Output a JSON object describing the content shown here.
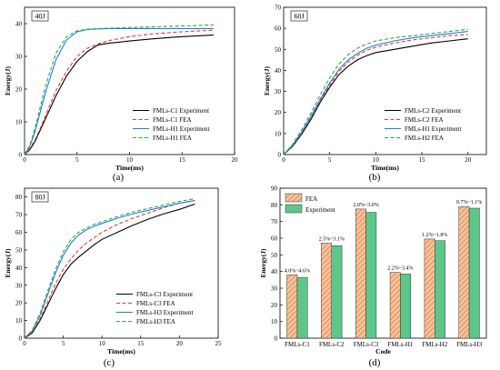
{
  "chart_data": [
    {
      "type": "line",
      "panel_label": "40J",
      "caption": "(a)",
      "xlabel": "Time(ms)",
      "ylabel": "Energy(J)",
      "xlim": [
        0,
        20
      ],
      "ylim": [
        0,
        45
      ],
      "xticks": [
        0,
        5,
        10,
        15,
        20
      ],
      "yticks": [
        0,
        10,
        20,
        30,
        40
      ],
      "legend_position": "bottom-right",
      "series": [
        {
          "name": "FMLs-C1 Experiment",
          "color": "#000000",
          "dash": "solid",
          "x": [
            0,
            0.5,
            1,
            1.5,
            2,
            3,
            4,
            5,
            6,
            7,
            8,
            10,
            12,
            14,
            16,
            18
          ],
          "y": [
            0,
            1.5,
            4,
            7.5,
            11,
            18,
            24,
            28.5,
            31.5,
            33.5,
            34,
            34.7,
            35.3,
            35.8,
            36.2,
            36.5
          ]
        },
        {
          "name": "FMLs-C1 FEA",
          "color": "#e8392f",
          "dash": "dashed",
          "x": [
            0,
            0.5,
            1,
            1.5,
            2,
            3,
            4,
            5,
            6,
            7,
            8,
            10,
            12,
            14,
            16,
            18
          ],
          "y": [
            0,
            1.8,
            4.5,
            8,
            12,
            19.5,
            25.5,
            30,
            32.5,
            33.8,
            34.8,
            36,
            36.8,
            37.3,
            37.7,
            38
          ]
        },
        {
          "name": "FMLs-H1 Experiment",
          "color": "#1f7fd3",
          "dash": "solid",
          "x": [
            0,
            0.5,
            1,
            1.5,
            2,
            3,
            4,
            5,
            6,
            7,
            8,
            10,
            12,
            14,
            16,
            18
          ],
          "y": [
            0,
            2.5,
            7,
            13,
            19,
            29,
            35,
            37.5,
            38.2,
            38.4,
            38.5,
            38.5,
            38.5,
            38.5,
            38.5,
            38.5
          ]
        },
        {
          "name": "FMLs-H1 FEA",
          "color": "#2aa84a",
          "dash": "dashed",
          "x": [
            0,
            0.5,
            1,
            1.5,
            2,
            3,
            4,
            5,
            6,
            7,
            8,
            10,
            12,
            14,
            16,
            18
          ],
          "y": [
            0,
            2.8,
            8,
            14.5,
            21,
            31,
            36,
            37.8,
            38.3,
            38.5,
            38.6,
            38.8,
            39,
            39.2,
            39.4,
            39.6
          ]
        }
      ]
    },
    {
      "type": "line",
      "panel_label": "60J",
      "caption": "(b)",
      "xlabel": "Time(ms)",
      "ylabel": "Energy(J)",
      "xlim": [
        0,
        22
      ],
      "ylim": [
        0,
        70
      ],
      "xticks": [
        0,
        5,
        10,
        15,
        20
      ],
      "yticks": [
        0,
        10,
        20,
        30,
        40,
        50,
        60,
        70
      ],
      "legend_position": "bottom-right",
      "series": [
        {
          "name": "FMLs-C2 Experiment",
          "color": "#000000",
          "dash": "solid",
          "x": [
            0,
            1,
            2,
            3,
            4,
            5,
            6,
            7,
            8,
            9,
            10,
            12,
            14,
            16,
            18,
            20
          ],
          "y": [
            0,
            4,
            10,
            17,
            25,
            32,
            38,
            42,
            45,
            47,
            48.5,
            50,
            51.5,
            53,
            54,
            55
          ]
        },
        {
          "name": "FMLs-C2 FEA",
          "color": "#e8392f",
          "dash": "dashed",
          "x": [
            0,
            1,
            2,
            3,
            4,
            5,
            6,
            7,
            8,
            9,
            10,
            12,
            14,
            16,
            18,
            20
          ],
          "y": [
            0,
            4.2,
            10.5,
            18,
            26,
            33,
            39.5,
            44,
            47,
            49.5,
            51,
            53,
            54.5,
            55.5,
            56.5,
            57
          ]
        },
        {
          "name": "FMLs-H1 Experiment",
          "color": "#1f7fd3",
          "dash": "solid",
          "x": [
            0,
            1,
            2,
            3,
            4,
            5,
            6,
            7,
            8,
            9,
            10,
            12,
            14,
            16,
            18,
            20
          ],
          "y": [
            0,
            4.5,
            11,
            18.5,
            26.5,
            34,
            40.5,
            45,
            48,
            50.5,
            52,
            54,
            55.5,
            56.5,
            57.5,
            58.5
          ]
        },
        {
          "name": "FMLs-H2 FEA",
          "color": "#2aa84a",
          "dash": "dashed",
          "x": [
            0,
            1,
            2,
            3,
            4,
            5,
            6,
            7,
            8,
            9,
            10,
            12,
            14,
            16,
            18,
            20
          ],
          "y": [
            0,
            5,
            12,
            20,
            28.5,
            36.5,
            43,
            47.5,
            50.5,
            52.5,
            54,
            55.5,
            56.5,
            57.5,
            58.5,
            59.5
          ]
        }
      ]
    },
    {
      "type": "line",
      "panel_label": "80J",
      "caption": "(c)",
      "xlabel": "Time(ms)",
      "ylabel": "Energy(J)",
      "xlim": [
        0,
        25
      ],
      "ylim": [
        0,
        85
      ],
      "xticks": [
        0,
        5,
        10,
        15,
        20,
        25
      ],
      "yticks": [
        0,
        10,
        20,
        30,
        40,
        50,
        60,
        70,
        80
      ],
      "legend_position": "bottom-right",
      "series": [
        {
          "name": "FMLs-C3 Experiment",
          "color": "#000000",
          "dash": "solid",
          "x": [
            0,
            1,
            2,
            3,
            4,
            5,
            6,
            7,
            8,
            9,
            10,
            12,
            14,
            16,
            18,
            20,
            22
          ],
          "y": [
            0,
            3,
            10,
            19,
            28,
            36,
            42,
            46,
            49.5,
            53,
            56,
            60,
            64,
            67.5,
            70.5,
            73,
            76
          ]
        },
        {
          "name": "FMLs-C3 FEA",
          "color": "#e8392f",
          "dash": "dashed",
          "x": [
            0,
            1,
            2,
            3,
            4,
            5,
            6,
            7,
            8,
            9,
            10,
            12,
            14,
            16,
            18,
            20,
            22
          ],
          "y": [
            0,
            3.5,
            11,
            21,
            31,
            39,
            45,
            50,
            54,
            57,
            60,
            64.5,
            68,
            71,
            74,
            76.5,
            78
          ]
        },
        {
          "name": "FMLs-H3 Experiment",
          "color": "#1f7fd3",
          "dash": "solid",
          "x": [
            0,
            1,
            2,
            3,
            4,
            5,
            6,
            7,
            8,
            9,
            10,
            12,
            14,
            16,
            18,
            20,
            22
          ],
          "y": [
            0,
            4,
            13,
            25,
            37,
            47,
            54,
            58.5,
            61.5,
            63.5,
            65,
            68,
            70.5,
            72.5,
            74.5,
            76.5,
            78
          ]
        },
        {
          "name": "FMLs-H3 FEA",
          "color": "#2aa84a",
          "dash": "dashed",
          "x": [
            0,
            1,
            2,
            3,
            4,
            5,
            6,
            7,
            8,
            9,
            10,
            12,
            14,
            16,
            18,
            20,
            22
          ],
          "y": [
            0,
            4.5,
            14,
            27,
            39,
            49,
            56,
            60,
            62.5,
            64.5,
            66,
            69,
            71.5,
            73.5,
            75.5,
            77.5,
            79
          ]
        }
      ]
    },
    {
      "type": "bar",
      "caption": "(d)",
      "xlabel": "Code",
      "ylabel": "Energy(J)",
      "ylim": [
        0,
        90
      ],
      "yticks": [
        0,
        10,
        20,
        30,
        40,
        50,
        60,
        70,
        80,
        90
      ],
      "legend_position": "top-left",
      "categories": [
        "FMLs-C1",
        "FMLs-C2",
        "FMLs-C3",
        "FMLs-H1",
        "FMLs-H2",
        "FMLs-H3"
      ],
      "annotations": [
        "4.0%~4.6%",
        "2.5%~3.1%",
        "2.0%~3.0%",
        "2.2%~3.4%",
        "1.2%~1.8%",
        "0.7%~1.1%"
      ],
      "series": [
        {
          "name": "FEA",
          "color": "#f3a46b",
          "pattern": "hatch",
          "values": [
            38,
            57,
            77.5,
            39.5,
            59.5,
            79
          ]
        },
        {
          "name": "Experiment",
          "color": "#5dc78a",
          "pattern": "solid",
          "values": [
            36.5,
            55.5,
            75.5,
            38.5,
            58.5,
            78
          ]
        }
      ]
    }
  ]
}
